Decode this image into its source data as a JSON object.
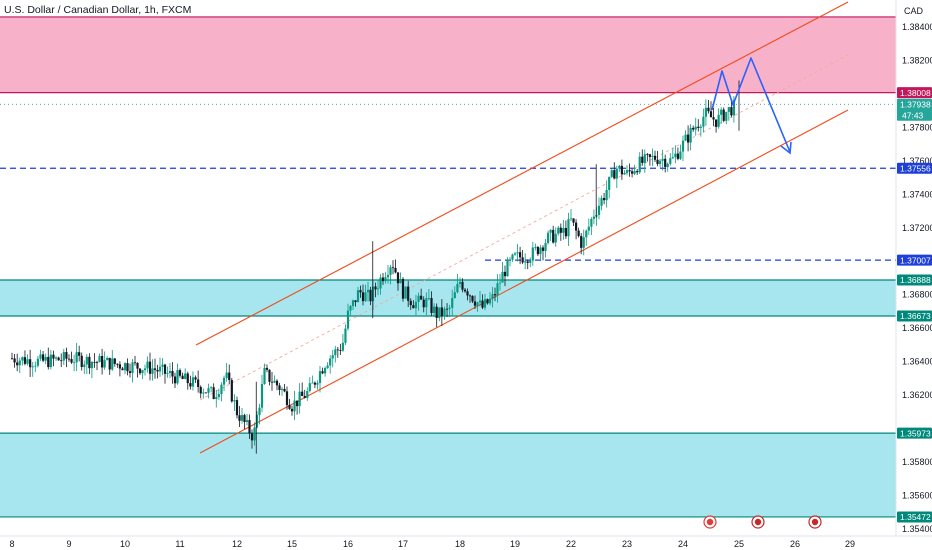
{
  "header": {
    "title": "U.S. Dollar / Canadian Dollar, 1h, FXCM"
  },
  "chart_data": {
    "type": "candlestick",
    "symbol": "U.S. Dollar / Canadian Dollar",
    "interval": "1h",
    "source": "FXCM",
    "currency": "CAD",
    "y_axis": {
      "ticks": [
        "1.38400",
        "1.38200",
        "1.37800",
        "1.37600",
        "1.37400",
        "1.37200",
        "1.36800",
        "1.36600",
        "1.36400",
        "1.36200",
        "1.35800",
        "1.35600",
        "1.35400"
      ],
      "tick_values": [
        1.384,
        1.382,
        1.378,
        1.376,
        1.374,
        1.372,
        1.368,
        1.366,
        1.364,
        1.362,
        1.358,
        1.356,
        1.354
      ],
      "ylim": [
        1.354,
        1.3846
      ]
    },
    "x_axis": {
      "ticks": [
        "8",
        "9",
        "10",
        "11",
        "12",
        "15",
        "16",
        "17",
        "18",
        "19",
        "22",
        "23",
        "24",
        "25",
        "26",
        "29"
      ]
    },
    "price_labels": [
      {
        "text": "1.38008",
        "value": 1.38008,
        "bg": "#c2185b",
        "fg": "#ffffff"
      },
      {
        "text": "1.37938",
        "value": 1.37938,
        "bg": "#26a69a",
        "fg": "#ffffff",
        "sub": "47:43"
      },
      {
        "text": "1.37556",
        "value": 1.37556,
        "bg": "#1e3fd8",
        "fg": "#ffffff"
      },
      {
        "text": "1.37007",
        "value": 1.37007,
        "bg": "#1e3fd8",
        "fg": "#ffffff"
      },
      {
        "text": "1.36888",
        "value": 1.36888,
        "bg": "#00897b",
        "fg": "#ffffff"
      },
      {
        "text": "1.36673",
        "value": 1.36673,
        "bg": "#00897b",
        "fg": "#ffffff"
      },
      {
        "text": "1.35973",
        "value": 1.35973,
        "bg": "#00897b",
        "fg": "#ffffff"
      },
      {
        "text": "1.35472",
        "value": 1.35472,
        "bg": "#00897b",
        "fg": "#ffffff"
      }
    ],
    "zones": [
      {
        "name": "supply",
        "from": 1.38008,
        "to": 1.3846,
        "fill": "#f7b1c8",
        "border": "#c2185b"
      },
      {
        "name": "demand-mid",
        "from": 1.36673,
        "to": 1.36888,
        "fill": "#a7e6ee",
        "border": "#00897b"
      },
      {
        "name": "demand-low",
        "from": 1.35472,
        "to": 1.35973,
        "fill": "#a7e6ee",
        "border": "#00897b"
      }
    ],
    "dashed_levels": [
      1.37556,
      1.37007
    ],
    "last_price": 1.37938,
    "countdown": "47:43",
    "colors": {
      "up": "#089981",
      "down": "#131722",
      "channel": "#f24a1a",
      "projection": "#2962ff",
      "zone_pink": "#f7b1c8",
      "zone_cyan": "#a7e6ee"
    },
    "candles_approx": [
      [
        0,
        1.3642
      ],
      [
        0.5,
        1.364
      ],
      [
        1,
        1.3642
      ],
      [
        1.5,
        1.364
      ],
      [
        2,
        1.3638
      ],
      [
        2.5,
        1.3636
      ],
      [
        3,
        1.363
      ],
      [
        3.3,
        1.3626
      ],
      [
        3.6,
        1.362
      ],
      [
        3.8,
        1.3632
      ],
      [
        4,
        1.361
      ],
      [
        4.3,
        1.3595
      ],
      [
        4.5,
        1.3633
      ],
      [
        4.8,
        1.3624
      ],
      [
        5,
        1.3614
      ],
      [
        5.3,
        1.3622
      ],
      [
        5.6,
        1.364
      ],
      [
        5.9,
        1.365
      ],
      [
        6,
        1.3668
      ],
      [
        6.2,
        1.3682
      ],
      [
        6.4,
        1.3678
      ],
      [
        6.6,
        1.369
      ],
      [
        6.8,
        1.37
      ],
      [
        7,
        1.3682
      ],
      [
        7.2,
        1.3675
      ],
      [
        7.4,
        1.3676
      ],
      [
        7.6,
        1.3668
      ],
      [
        7.8,
        1.367
      ],
      [
        8,
        1.3688
      ],
      [
        8.2,
        1.368
      ],
      [
        8.4,
        1.3672
      ],
      [
        8.6,
        1.3678
      ],
      [
        8.8,
        1.3694
      ],
      [
        9,
        1.3702
      ],
      [
        9.3,
        1.3704
      ],
      [
        9.6,
        1.3714
      ],
      [
        9.9,
        1.3718
      ],
      [
        10,
        1.3724
      ],
      [
        10.2,
        1.371
      ],
      [
        10.4,
        1.3728
      ],
      [
        10.6,
        1.374
      ],
      [
        10.8,
        1.3756
      ],
      [
        11,
        1.3752
      ],
      [
        11.2,
        1.3758
      ],
      [
        11.5,
        1.3762
      ],
      [
        11.8,
        1.376
      ],
      [
        12,
        1.377
      ],
      [
        12.2,
        1.378
      ],
      [
        12.4,
        1.3788
      ],
      [
        12.6,
        1.3784
      ],
      [
        12.8,
        1.379
      ],
      [
        13,
        1.3794
      ]
    ],
    "projection_path": [
      [
        13.05,
        1.3787
      ],
      [
        13.2,
        1.3798
      ],
      [
        13.35,
        1.3816
      ],
      [
        13.5,
        1.381
      ],
      [
        13.65,
        1.3812
      ],
      [
        13.8,
        1.3822
      ],
      [
        14.0,
        1.3812
      ],
      [
        14.3,
        1.379
      ],
      [
        14.6,
        1.376
      ]
    ]
  }
}
